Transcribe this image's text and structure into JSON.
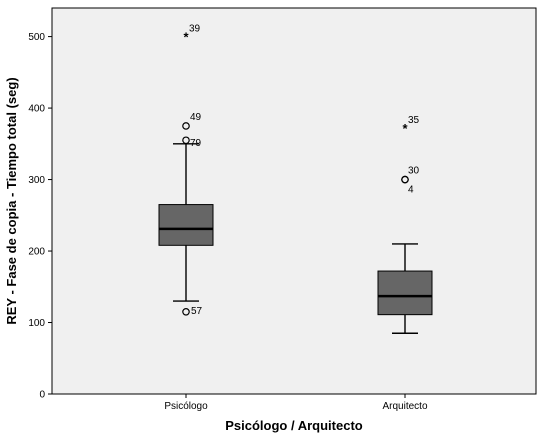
{
  "chart_data": {
    "type": "boxplot",
    "xlabel": "Psicólogo / Arquitecto",
    "ylabel": "REY - Fase de copia - Tiempo total (seg)",
    "ylim": [
      0,
      540
    ],
    "yticks": [
      0,
      100,
      200,
      300,
      400,
      500
    ],
    "grid": false,
    "colors": {
      "plot_background": "#f0f0f0",
      "box_fill": "#666666",
      "stroke": "#000000"
    },
    "groups": [
      {
        "category": "Psicólogo",
        "whisker_low": 130,
        "q1": 208,
        "median": 231,
        "q3": 265,
        "whisker_high": 350,
        "outliers": [
          {
            "value": 500,
            "marker": "star",
            "label": "39"
          },
          {
            "value": 375,
            "marker": "circle",
            "label": "49"
          },
          {
            "value": 355,
            "marker": "circle",
            "label": "79"
          },
          {
            "value": 115,
            "marker": "circle",
            "label": "57"
          }
        ]
      },
      {
        "category": "Arquitecto",
        "whisker_low": 85,
        "q1": 111,
        "median": 137,
        "q3": 172,
        "whisker_high": 210,
        "outliers": [
          {
            "value": 372,
            "marker": "star",
            "label": "35"
          },
          {
            "value": 300,
            "marker": "circle",
            "label": "30"
          },
          {
            "value": 300,
            "marker": "circle",
            "label": "4"
          }
        ]
      }
    ]
  }
}
